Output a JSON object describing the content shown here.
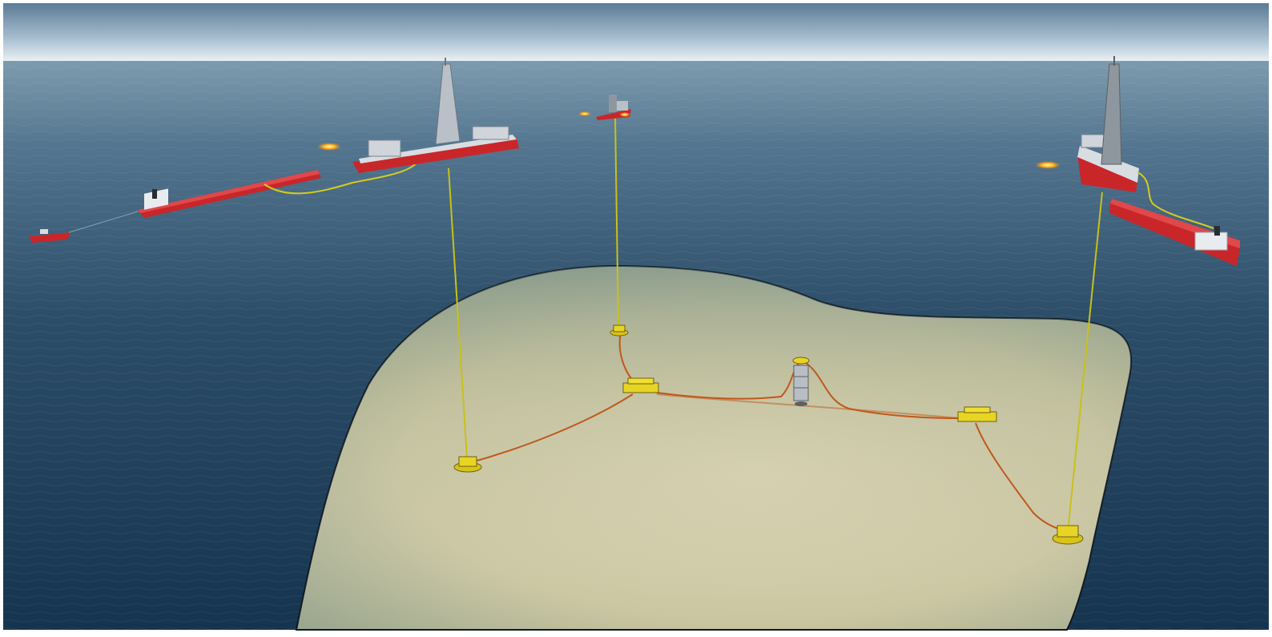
{
  "scene": {
    "description_visible_text": "",
    "colors": {
      "sky_top": "#5f7d99",
      "sky_horizon": "#e6eef3",
      "sea_far": "#6f8ea3",
      "sea_near": "#183955",
      "seabed": "#cfc9a6",
      "seabed_edge": "#101820",
      "hull_red": "#c9262a",
      "deck_white": "#e9ecef",
      "subsea_yellow": "#e7d21f",
      "flowline_orange": "#c8601e",
      "riser_yellow": "#c9c21a",
      "flare": "#ffb21c"
    },
    "icons": [
      "drillship-icon",
      "shuttle-tanker-icon",
      "tug-boat-icon",
      "platform-icon",
      "subsea-wellhead-icon",
      "subsea-manifold-icon",
      "subsea-pump-icon",
      "flare-icon"
    ]
  }
}
